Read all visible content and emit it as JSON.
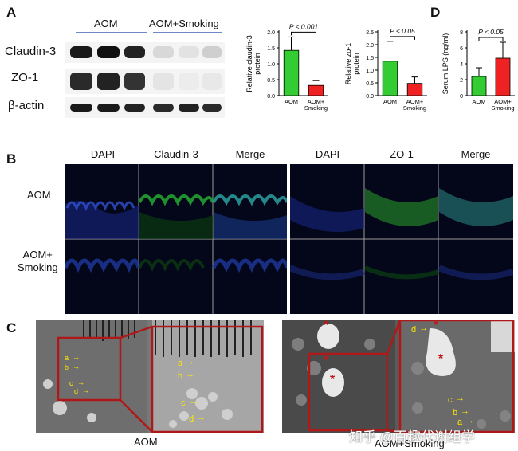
{
  "panelA": {
    "letter": "A",
    "wb_groups": [
      "AOM",
      "AOM+Smoking"
    ],
    "wb_rows": [
      "Claudin-3",
      "ZO-1",
      "β-actin"
    ]
  },
  "panelD": {
    "letter": "D"
  },
  "panelB": {
    "letter": "B",
    "col_heads_left": [
      "DAPI",
      "Claudin-3",
      "Merge"
    ],
    "col_heads_right": [
      "DAPI",
      "ZO-1",
      "Merge"
    ],
    "row_heads": [
      "AOM",
      "AOM+\nSmoking"
    ]
  },
  "panelC": {
    "letter": "C",
    "captions": [
      "AOM",
      "AOM+Smoking"
    ],
    "markers": [
      "a",
      "b",
      "c",
      "d"
    ],
    "asterisk": "*",
    "watermark": "知乎 @百趣代谢组学"
  },
  "chart_data": [
    {
      "type": "bar",
      "categories": [
        "AOM",
        "AOM+\nSmoking"
      ],
      "values": [
        1.42,
        0.32
      ],
      "errors": [
        0.42,
        0.15
      ],
      "colors": [
        "#33cc33",
        "#ee2222"
      ],
      "ylabel": "Relative claudin-3\nprotein",
      "ylim": [
        0,
        2.0
      ],
      "yticks": [
        0.0,
        0.5,
        1.0,
        1.5,
        2.0
      ],
      "annotation": "P < 0.001"
    },
    {
      "type": "bar",
      "categories": [
        "AOM",
        "AOM+\nSmoking"
      ],
      "values": [
        1.35,
        0.48
      ],
      "errors": [
        0.78,
        0.25
      ],
      "colors": [
        "#33cc33",
        "#ee2222"
      ],
      "ylabel": "Relative zo-1\nprotein",
      "ylim": [
        0,
        2.5
      ],
      "yticks": [
        0.0,
        0.5,
        1.0,
        1.5,
        2.0,
        2.5
      ],
      "annotation": "P < 0.05"
    },
    {
      "type": "bar",
      "categories": [
        "AOM",
        "AOM+\nSmoking"
      ],
      "values": [
        2.4,
        4.7
      ],
      "errors": [
        1.1,
        2.0
      ],
      "colors": [
        "#33cc33",
        "#ee2222"
      ],
      "ylabel": "Serum LPS (ng/ml)",
      "ylim": [
        0,
        8
      ],
      "yticks": [
        0,
        2,
        4,
        6,
        8
      ],
      "annotation": "P < 0.05"
    }
  ]
}
